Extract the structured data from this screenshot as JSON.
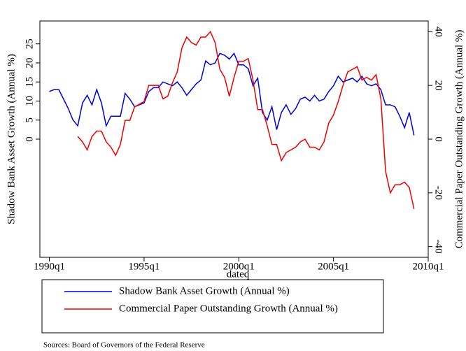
{
  "chart_data": {
    "type": "line",
    "x_label": "dateq",
    "y_label": "Shadow Bank Asset Growth (Annual %)",
    "y2_label": "Commercial Paper Outstanding Growth (Annual %)",
    "note": "Sources: Board of Governors of the Federal Reserve",
    "x": [
      "1990q1",
      "1990q2",
      "1990q3",
      "1990q4",
      "1991q1",
      "1991q2",
      "1991q3",
      "1991q4",
      "1992q1",
      "1992q2",
      "1992q3",
      "1992q4",
      "1993q1",
      "1993q2",
      "1993q3",
      "1993q4",
      "1994q1",
      "1994q2",
      "1994q3",
      "1994q4",
      "1995q1",
      "1995q2",
      "1995q3",
      "1995q4",
      "1996q1",
      "1996q2",
      "1996q3",
      "1996q4",
      "1997q1",
      "1997q2",
      "1997q3",
      "1997q4",
      "1998q1",
      "1998q2",
      "1998q3",
      "1998q4",
      "1999q1",
      "1999q2",
      "1999q3",
      "1999q4",
      "2000q1",
      "2000q2",
      "2000q3",
      "2000q4",
      "2001q1",
      "2001q2",
      "2001q3",
      "2001q4",
      "2002q1",
      "2002q2",
      "2002q3",
      "2002q4",
      "2003q1",
      "2003q2",
      "2003q3",
      "2003q4",
      "2004q1",
      "2004q2",
      "2004q3",
      "2004q4",
      "2005q1",
      "2005q2",
      "2005q3",
      "2005q4",
      "2006q1",
      "2006q2",
      "2006q3",
      "2006q4",
      "2007q1",
      "2007q2",
      "2007q3",
      "2007q4",
      "2008q1",
      "2008q2",
      "2008q3",
      "2008q4",
      "2009q1",
      "2009q2"
    ],
    "xlim": [
      "1989q3",
      "2010q1"
    ],
    "xticks": [
      "1990q1",
      "1995q1",
      "2000q1",
      "2005q1",
      "2010q1"
    ],
    "ylim": [
      -31,
      31
    ],
    "yticks": [
      0,
      5,
      10,
      15,
      20,
      25
    ],
    "y2lim": [
      -44,
      44
    ],
    "y2ticks": [
      -40,
      -20,
      0,
      20,
      40
    ],
    "series": [
      {
        "name": "Shadow Bank Asset Growth (Annual %)",
        "color": "#0000dd",
        "values": [
          12.5,
          13,
          13,
          10.5,
          8,
          5,
          3.5,
          9.5,
          11.5,
          9,
          13,
          9.5,
          3.5,
          6,
          6,
          6,
          12,
          10.5,
          8.5,
          9,
          9.5,
          12.5,
          13.5,
          13.5,
          15,
          14.5,
          14,
          15,
          13.5,
          11.5,
          13,
          14.5,
          15.5,
          20.5,
          19.5,
          20,
          22.5,
          22,
          21,
          22.5,
          19.5,
          19.5,
          18.5,
          14,
          16,
          7,
          5,
          8.5,
          2.5,
          7,
          9,
          6.5,
          8,
          10.5,
          11,
          10,
          11.5,
          10,
          10.5,
          12.5,
          14,
          16.5,
          15,
          15.5,
          16,
          15,
          16.5,
          14.5,
          14,
          14.5,
          13,
          9,
          9,
          8.5,
          6,
          3,
          7,
          1
        ]
      },
      {
        "name": "Commercial Paper Outstanding Growth (Annual %)",
        "color": "#ee0000",
        "axis": "y2",
        "values": [
          null,
          null,
          null,
          null,
          null,
          null,
          1,
          -1,
          -4,
          1,
          3,
          3,
          -1,
          -3,
          -6,
          -2,
          7,
          7,
          12,
          13,
          14,
          20,
          20,
          20,
          15,
          16,
          21,
          25,
          34,
          38,
          36,
          35,
          38,
          38,
          40,
          36,
          26,
          23,
          16,
          23,
          29,
          29,
          30,
          22,
          11,
          11,
          5,
          -2,
          -2,
          -8,
          -5,
          -4,
          -3,
          -1,
          0,
          -3,
          -3,
          -4,
          -1,
          6,
          9,
          14,
          20,
          25,
          26,
          27,
          22,
          23,
          22,
          24,
          15,
          -12,
          -20,
          -17,
          -17,
          -16,
          -18,
          -26
        ]
      }
    ]
  }
}
